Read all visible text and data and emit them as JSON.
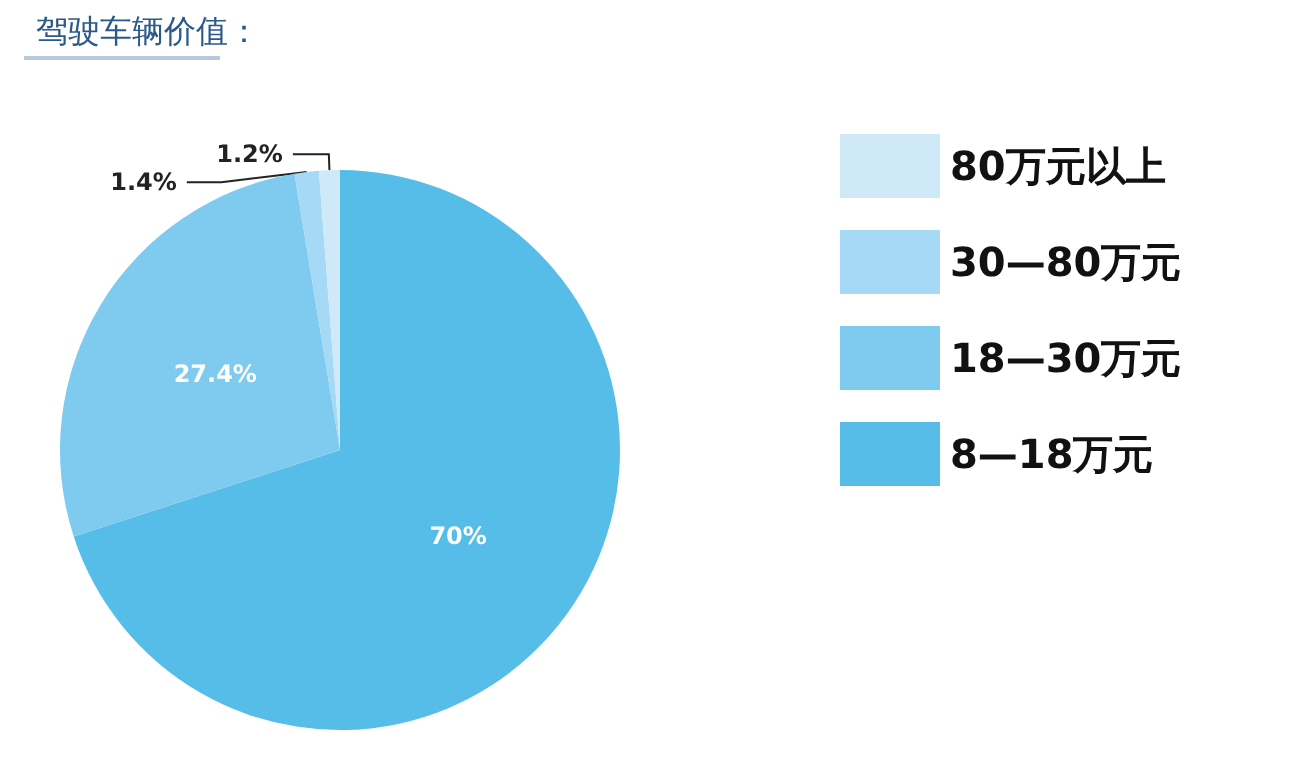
{
  "chart_data": {
    "type": "pie",
    "title": "驾驶车辆价值：",
    "categories": [
      "8—18万元",
      "18—30万元",
      "30—80万元",
      "80万元以上"
    ],
    "values": [
      70,
      27.4,
      1.4,
      1.2
    ],
    "value_labels": [
      "70%",
      "27.4%",
      "1.4%",
      "1.2%"
    ],
    "colors": [
      "#56bde8",
      "#7fcaef",
      "#a6d9f5",
      "#cfe9f8"
    ],
    "legend": "right"
  }
}
